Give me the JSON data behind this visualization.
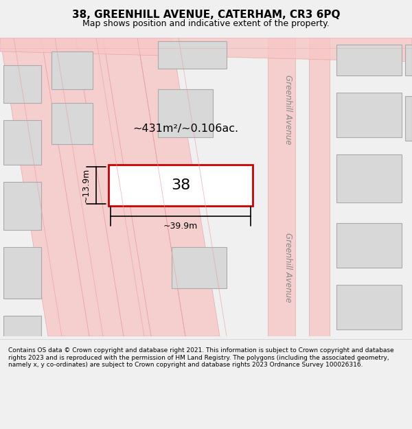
{
  "title": "38, GREENHILL AVENUE, CATERHAM, CR3 6PQ",
  "subtitle": "Map shows position and indicative extent of the property.",
  "footer": "Contains OS data © Crown copyright and database right 2021. This information is subject to Crown copyright and database rights 2023 and is reproduced with the permission of HM Land Registry. The polygons (including the associated geometry, namely x, y co-ordinates) are subject to Crown copyright and database rights 2023 Ordnance Survey 100026316.",
  "background_color": "#f5f5f5",
  "map_bg": "#f8f8f8",
  "road_color": "#f7c8c8",
  "road_border_color": "#e8a0a0",
  "building_color": "#d8d8d8",
  "building_border": "#aaaaaa",
  "highlight_color": "#cc0000",
  "highlight_fill": "#ffffff",
  "street_label": "Greenhill Avenue",
  "area_label": "~431m²/~0.106ac.",
  "width_label": "~39.9m",
  "height_label": "~13.9m",
  "plot_number": "38",
  "map_xlim": [
    0,
    1
  ],
  "map_ylim": [
    0,
    1
  ]
}
